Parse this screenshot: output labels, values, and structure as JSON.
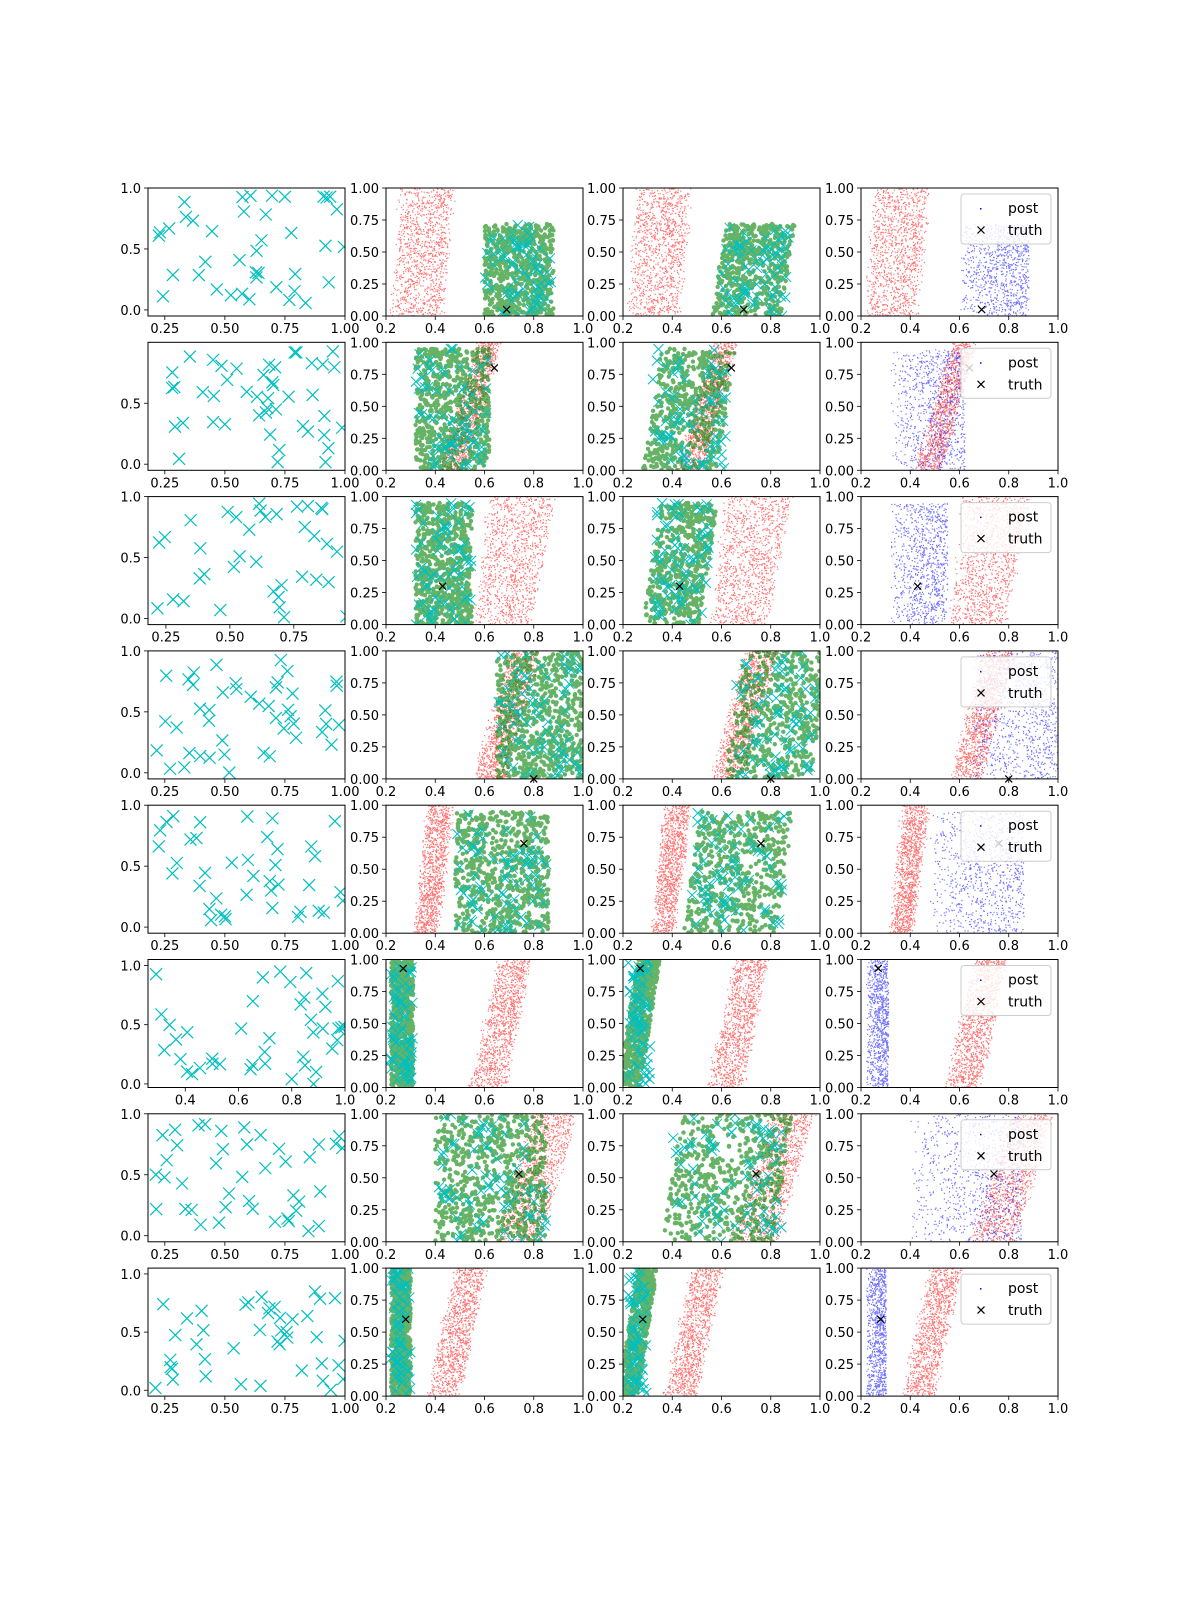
{
  "colors": {
    "truth_markers": "#00bfbf",
    "prior_samples": "#ff0000",
    "proposal_samples": "#008000",
    "posterior_samples": "#0000ff",
    "truth_point": "#000000"
  },
  "legend": {
    "post": "post",
    "truth": "truth"
  },
  "chart_data": [
    {
      "row": 0,
      "type": "scatter",
      "panel": "observations",
      "xlim": [
        0.18,
        1.0
      ],
      "ylim": [
        -0.05,
        1.0
      ],
      "xticks": [
        "0.25",
        "0.50",
        "0.75",
        "1.00"
      ],
      "yticks": [
        "0.0",
        "0.5",
        "1.0"
      ],
      "n_points": 40,
      "truth": [
        0.69,
        0.05
      ],
      "red_band": [
        0.22,
        0.42,
        0.26,
        0.47
      ],
      "post_cloud": [
        0.6,
        0.88,
        0.0,
        0.72
      ],
      "legend": "top-right"
    },
    {
      "row": 1,
      "type": "scatter",
      "panel": "observations",
      "xlim": [
        0.18,
        1.0
      ],
      "ylim": [
        -0.05,
        1.0
      ],
      "xticks": [
        "0.25",
        "0.50",
        "0.75",
        "1.00"
      ],
      "yticks": [
        "0.0",
        "0.5"
      ],
      "n_points": 45,
      "truth": [
        0.64,
        0.8
      ],
      "red_band": [
        0.42,
        0.52,
        0.57,
        0.66
      ],
      "post_cloud": [
        0.32,
        0.62,
        0.0,
        0.95
      ],
      "legend": "top-right"
    },
    {
      "row": 2,
      "type": "scatter",
      "panel": "observations",
      "xlim": [
        0.18,
        0.95
      ],
      "ylim": [
        -0.05,
        1.0
      ],
      "xticks": [
        "0.25",
        "0.50",
        "0.75"
      ],
      "yticks": [
        "0.0",
        "0.5",
        "1.0"
      ],
      "n_points": 40,
      "truth": [
        0.43,
        0.3
      ],
      "red_band": [
        0.56,
        0.78,
        0.62,
        0.88
      ],
      "post_cloud": [
        0.32,
        0.55,
        0.0,
        0.95
      ],
      "legend": "top-right"
    },
    {
      "row": 3,
      "type": "scatter",
      "panel": "observations",
      "xlim": [
        0.18,
        1.0
      ],
      "ylim": [
        -0.05,
        1.0
      ],
      "xticks": [
        "0.25",
        "0.50",
        "0.75",
        "1.00"
      ],
      "yticks": [
        "0.0",
        "0.5",
        "1.0"
      ],
      "n_points": 45,
      "truth": [
        0.8,
        0.0
      ],
      "red_band": [
        0.56,
        0.68,
        0.7,
        0.82
      ],
      "post_cloud": [
        0.65,
        1.0,
        0.0,
        1.0
      ],
      "legend": "top-right"
    },
    {
      "row": 4,
      "type": "scatter",
      "panel": "observations",
      "xlim": [
        0.18,
        1.0
      ],
      "ylim": [
        -0.05,
        1.0
      ],
      "xticks": [
        "0.25",
        "0.50",
        "0.75",
        "1.00"
      ],
      "yticks": [
        "0.0",
        "0.5",
        "1.0"
      ],
      "n_points": 40,
      "truth": [
        0.76,
        0.7
      ],
      "red_band": [
        0.32,
        0.4,
        0.37,
        0.47
      ],
      "post_cloud": [
        0.48,
        0.86,
        0.0,
        0.95
      ],
      "legend": "top-right"
    },
    {
      "row": 5,
      "type": "scatter",
      "panel": "observations",
      "xlim": [
        0.26,
        1.0
      ],
      "ylim": [
        -0.03,
        1.05
      ],
      "xticks": [
        "0.4",
        "0.6",
        "0.8",
        "1.0"
      ],
      "yticks": [
        "0.0",
        "0.5",
        "1.0"
      ],
      "n_points": 42,
      "truth": [
        0.27,
        0.93
      ],
      "red_band": [
        0.54,
        0.68,
        0.66,
        0.78
      ],
      "post_cloud": [
        0.22,
        0.31,
        0.0,
        1.0
      ],
      "legend": "top-right"
    },
    {
      "row": 6,
      "type": "scatter",
      "panel": "observations",
      "xlim": [
        0.18,
        1.0
      ],
      "ylim": [
        -0.05,
        1.0
      ],
      "xticks": [
        "0.25",
        "0.50",
        "0.75",
        "1.00"
      ],
      "yticks": [
        "0.0",
        "0.5",
        "1.0"
      ],
      "n_points": 42,
      "truth": [
        0.74,
        0.53
      ],
      "red_band": [
        0.64,
        0.82,
        0.8,
        0.97
      ],
      "post_cloud": [
        0.4,
        0.85,
        0.0,
        1.0
      ],
      "legend": "top-right"
    },
    {
      "row": 7,
      "type": "scatter",
      "panel": "observations",
      "xlim": [
        0.18,
        1.0
      ],
      "ylim": [
        -0.05,
        1.05
      ],
      "xticks": [
        "0.25",
        "0.50",
        "0.75",
        "1.00"
      ],
      "yticks": [
        "0.0",
        "0.5",
        "1.0"
      ],
      "n_points": 42,
      "truth": [
        0.28,
        0.6
      ],
      "red_band": [
        0.37,
        0.49,
        0.48,
        0.6
      ],
      "post_cloud": [
        0.22,
        0.3,
        0.0,
        1.0
      ],
      "legend": "top-right"
    }
  ],
  "sample_axes": {
    "xlim": [
      0.2,
      1.0
    ],
    "ylim": [
      0.0,
      1.0
    ],
    "xticks": [
      "0.2",
      "0.4",
      "0.6",
      "0.8",
      "1.0"
    ],
    "yticks": [
      "0.00",
      "0.25",
      "0.50",
      "0.75",
      "1.00"
    ]
  }
}
